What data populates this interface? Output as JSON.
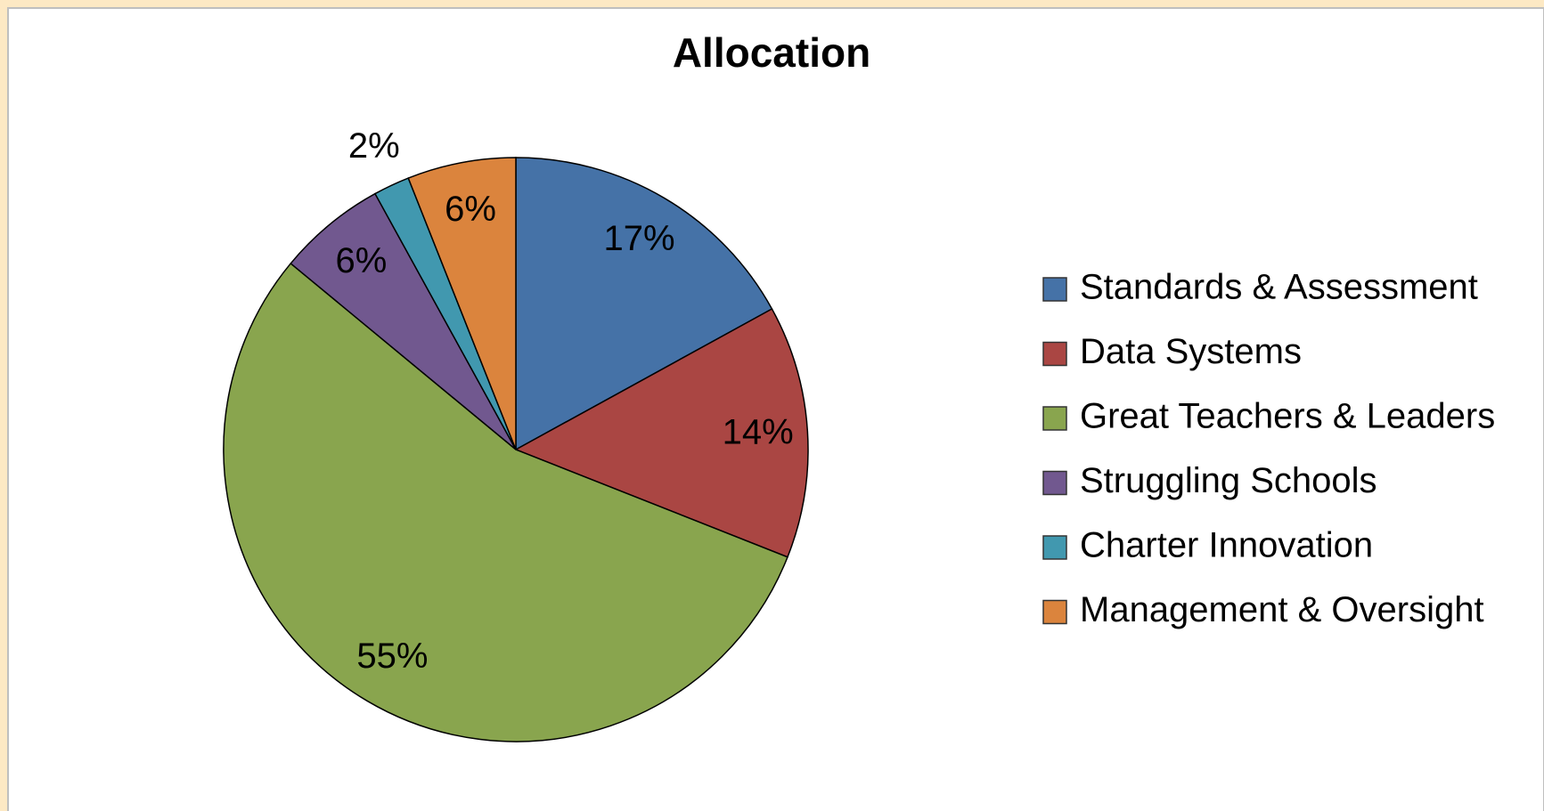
{
  "chart_data": {
    "type": "pie",
    "title": "Allocation",
    "categories": [
      "Standards & Assessment",
      "Data Systems",
      "Great Teachers & Leaders",
      "Struggling Schools",
      "Charter Innovation",
      "Management & Oversight"
    ],
    "values": [
      17,
      14,
      55,
      6,
      2,
      6
    ],
    "value_labels": [
      "17%",
      "14%",
      "55%",
      "6%",
      "2%",
      "6%"
    ],
    "colors": [
      "#4572a7",
      "#aa4643",
      "#89a54e",
      "#71588f",
      "#4198af",
      "#db843d"
    ],
    "legend": "right"
  }
}
